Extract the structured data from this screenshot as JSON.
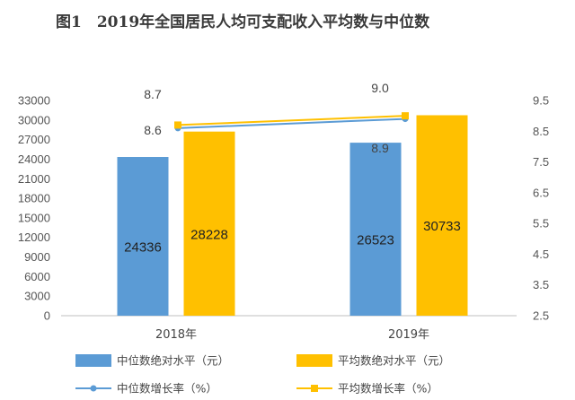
{
  "title": "图1　2019年全国居民人均可支配收入平均数与中位数",
  "chart_data": {
    "type": "bar",
    "categories": [
      "2018年",
      "2019年"
    ],
    "series": [
      {
        "name": "中位数绝对水平（元）",
        "type": "bar",
        "axis": "left",
        "color": "#5b9bd5",
        "values": [
          24336,
          26523
        ]
      },
      {
        "name": "平均数绝对水平（元）",
        "type": "bar",
        "axis": "left",
        "color": "#ffc000",
        "values": [
          28228,
          30733
        ]
      },
      {
        "name": "中位数增长率（%）",
        "type": "line",
        "axis": "right",
        "color": "#5b9bd5",
        "values": [
          8.6,
          8.9
        ]
      },
      {
        "name": "平均数增长率（%）",
        "type": "line",
        "axis": "right",
        "color": "#ffc000",
        "values": [
          8.7,
          9.0
        ]
      }
    ],
    "left_axis": {
      "min": 0,
      "max": 33000,
      "ticks": [
        0,
        3000,
        6000,
        9000,
        12000,
        15000,
        18000,
        21000,
        24000,
        27000,
        30000,
        33000
      ]
    },
    "right_axis": {
      "min": 2.5,
      "max": 9.5,
      "ticks": [
        2.5,
        3.5,
        4.5,
        5.5,
        6.5,
        7.5,
        8.5,
        9.5
      ]
    },
    "legend_position": "bottom",
    "grid": false
  }
}
